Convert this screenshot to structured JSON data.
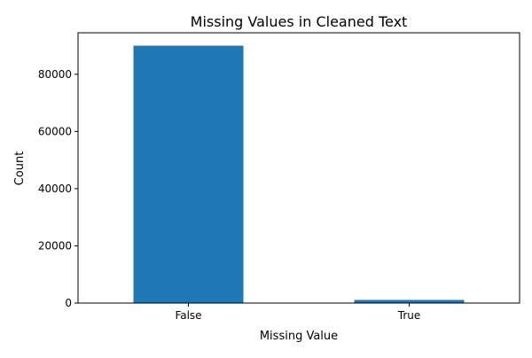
{
  "chart_data": {
    "type": "bar",
    "title": "Missing Values in Cleaned Text",
    "xlabel": "Missing Value",
    "ylabel": "Count",
    "categories": [
      "False",
      "True"
    ],
    "values": [
      90000,
      1100
    ],
    "ylim": [
      0,
      94500
    ],
    "yticks": [
      0,
      20000,
      40000,
      60000,
      80000
    ],
    "grid": false,
    "legend": "none",
    "bar_color": "#1f77b4",
    "axis_color": "#000000"
  }
}
